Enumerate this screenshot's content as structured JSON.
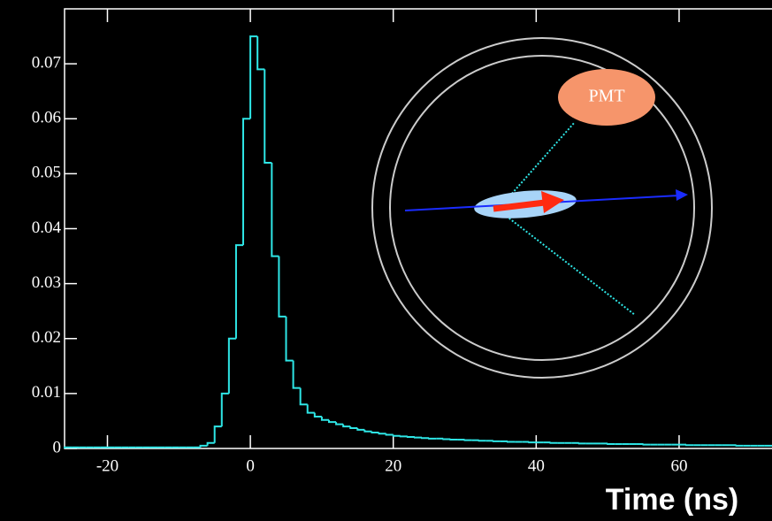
{
  "chart_data": {
    "type": "histogram",
    "xlabel": "Time (ns)",
    "annotation": "PMT",
    "color": "#2ee6e6",
    "xlim": [
      -26,
      73
    ],
    "ylim": [
      0,
      0.08
    ],
    "xticks": [
      -20,
      0,
      20,
      40,
      60
    ],
    "yticks": [
      0,
      0.01,
      0.02,
      0.03,
      0.04,
      0.05,
      0.06,
      0.07
    ],
    "bins": [
      -26,
      -25,
      -24,
      -23,
      -22,
      -21,
      -20,
      -19,
      -18,
      -17,
      -16,
      -15,
      -14,
      -13,
      -12,
      -11,
      -10,
      -9,
      -8,
      -7,
      -6,
      -5,
      -4,
      -3,
      -2,
      -1,
      0,
      1,
      2,
      3,
      4,
      5,
      6,
      7,
      8,
      9,
      10,
      11,
      12,
      13,
      14,
      15,
      16,
      17,
      18,
      19,
      20,
      21,
      22,
      23,
      24,
      25,
      26,
      27,
      28,
      29,
      30,
      31,
      32,
      33,
      34,
      35,
      36,
      37,
      38,
      39,
      40,
      41,
      42,
      43,
      44,
      45,
      46,
      47,
      48,
      49,
      50,
      51,
      52,
      53,
      54,
      55,
      56,
      57,
      58,
      59,
      60,
      61,
      62,
      63,
      64,
      65,
      66,
      67,
      68,
      69,
      70,
      71,
      72,
      73
    ],
    "values": [
      0.0002,
      0.0002,
      0.0002,
      0.0002,
      0.0002,
      0.0002,
      0.0002,
      0.0002,
      0.0002,
      0.0002,
      0.0002,
      0.0002,
      0.0002,
      0.0002,
      0.0002,
      0.0002,
      0.0002,
      0.0002,
      0.0002,
      0.0005,
      0.001,
      0.004,
      0.01,
      0.02,
      0.037,
      0.06,
      0.075,
      0.069,
      0.052,
      0.035,
      0.024,
      0.016,
      0.011,
      0.008,
      0.0065,
      0.0058,
      0.0052,
      0.0048,
      0.0044,
      0.004,
      0.0037,
      0.0034,
      0.0031,
      0.0029,
      0.0027,
      0.0025,
      0.0023,
      0.0022,
      0.0021,
      0.002,
      0.0019,
      0.0018,
      0.0018,
      0.0017,
      0.0016,
      0.0016,
      0.0015,
      0.0015,
      0.0014,
      0.0014,
      0.0013,
      0.0013,
      0.0012,
      0.0012,
      0.0012,
      0.0011,
      0.0011,
      0.0011,
      0.001,
      0.001,
      0.001,
      0.001,
      0.0009,
      0.0009,
      0.0009,
      0.0009,
      0.0008,
      0.0008,
      0.0008,
      0.0008,
      0.0008,
      0.0007,
      0.0007,
      0.0007,
      0.0007,
      0.0007,
      0.0007,
      0.0006,
      0.0006,
      0.0006,
      0.0006,
      0.0006,
      0.0006,
      0.0006,
      0.0005,
      0.0005,
      0.0005,
      0.0005,
      0.0005
    ]
  }
}
